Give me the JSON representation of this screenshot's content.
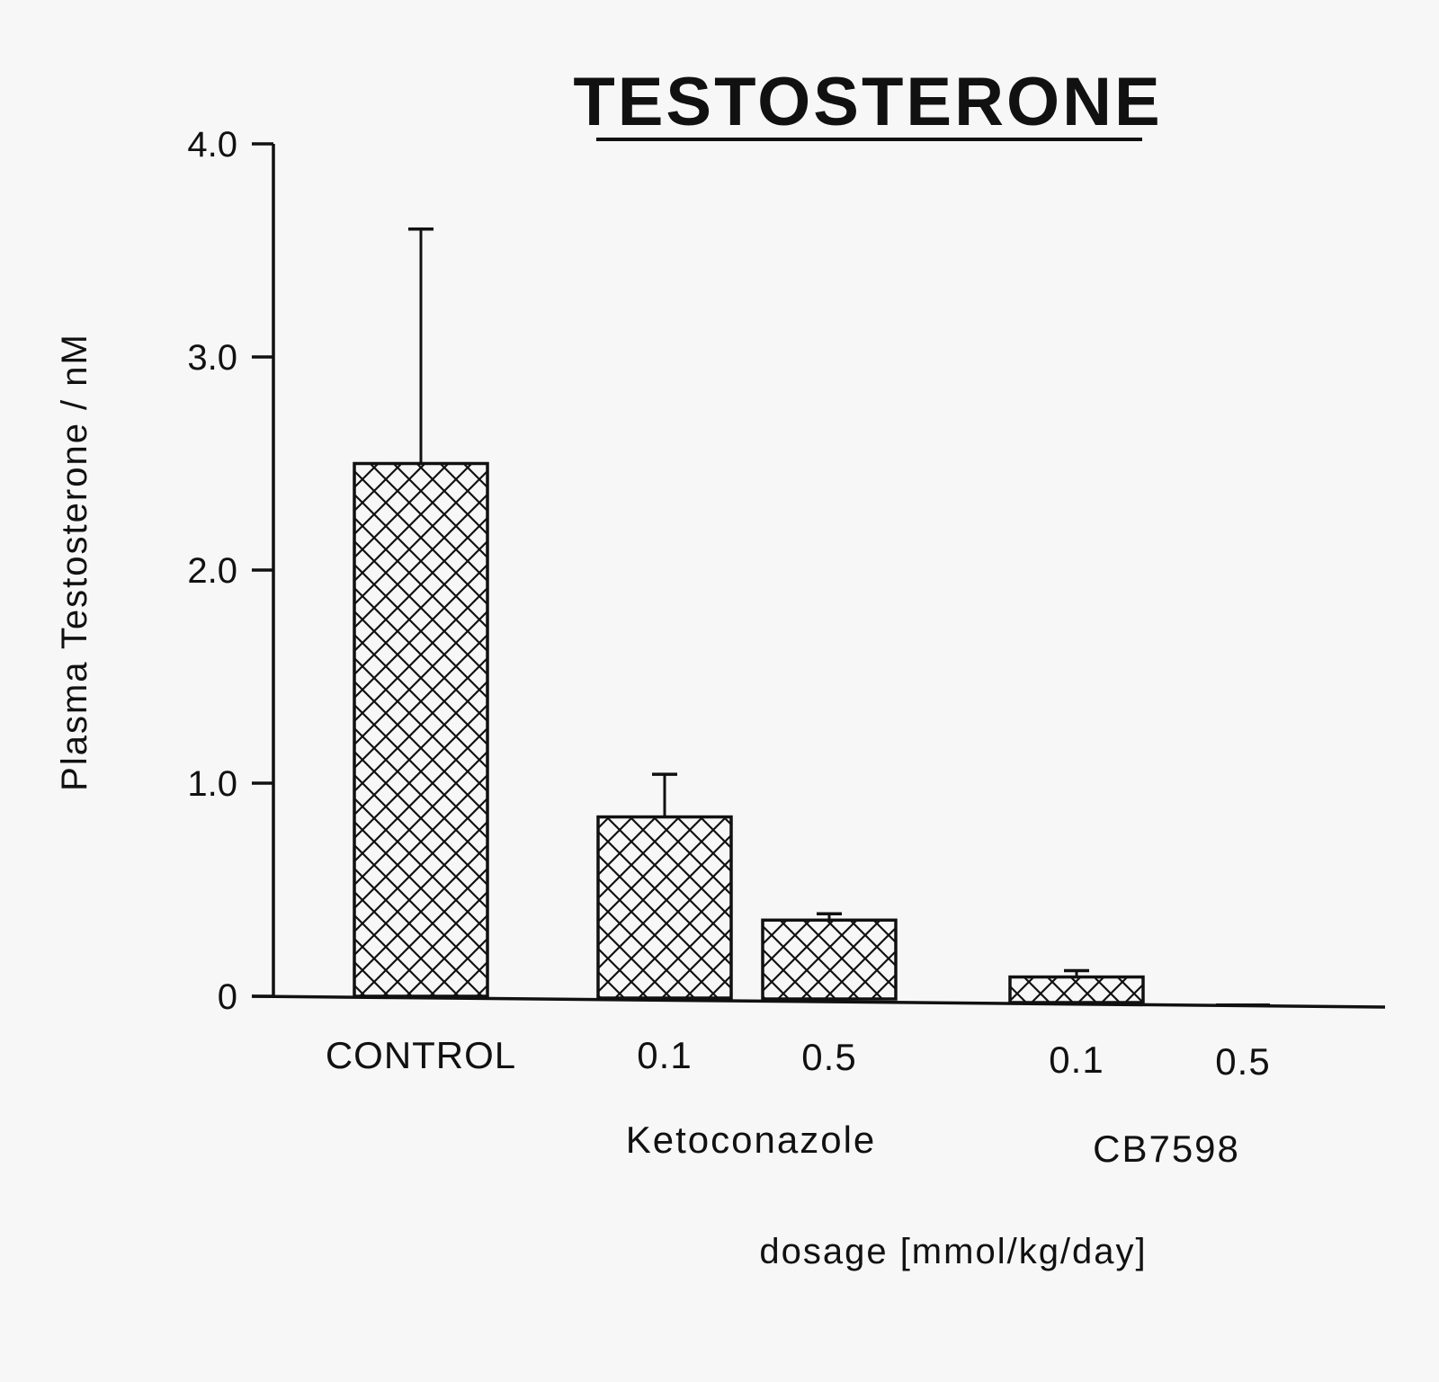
{
  "chart_data": {
    "type": "bar",
    "title": "TESTOSTERONE",
    "ylabel": "Plasma Testosterone / nM",
    "xlabel": "dosage [mmol/kg/day]",
    "ylim": [
      0,
      4.0
    ],
    "yticks": [
      "0",
      "1.0",
      "2.0",
      "3.0",
      "4.0"
    ],
    "ytick_values": [
      0,
      1.0,
      2.0,
      3.0,
      4.0
    ],
    "categories": [
      "CONTROL",
      "0.1",
      "0.5",
      "0.1",
      "0.5"
    ],
    "groups": [
      {
        "label": "",
        "categories": [
          0
        ]
      },
      {
        "label": "Ketoconazole",
        "categories": [
          1,
          2
        ]
      },
      {
        "label": "CB7598",
        "categories": [
          3,
          4
        ]
      }
    ],
    "values": [
      2.5,
      0.85,
      0.37,
      0.12,
      0.0
    ],
    "error_upper": [
      3.6,
      1.05,
      0.4,
      0.15,
      0.0
    ],
    "fill": "cross-hatch",
    "grid": false
  }
}
